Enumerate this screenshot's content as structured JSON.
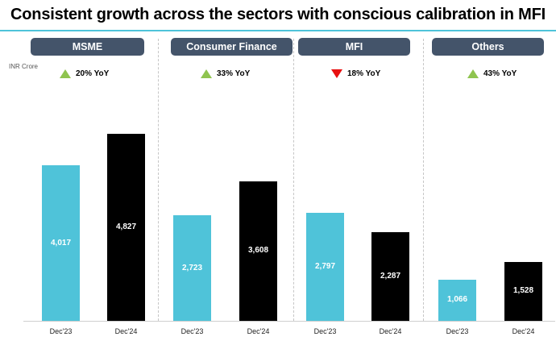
{
  "title": "Consistent growth across the sectors with conscious calibration in MFI",
  "colors": {
    "accent": "#4fc3d9",
    "dec23_bar": "#4fc3d9",
    "dec24_bar": "#000000",
    "pill_bg": "#44546a",
    "up": "#8fc44f",
    "down": "#e81010"
  },
  "chart_data": {
    "type": "bar",
    "unit": "INR Crore",
    "categories": [
      "Dec'23",
      "Dec'24"
    ],
    "groups": [
      {
        "name": "MSME",
        "yoy": "20% YoY",
        "trend": "up",
        "values": [
          4017,
          4827
        ],
        "labels": [
          "4,017",
          "4,827"
        ]
      },
      {
        "name": "Consumer Finance",
        "yoy": "33% YoY",
        "trend": "up",
        "values": [
          2723,
          3608
        ],
        "labels": [
          "2,723",
          "3,608"
        ]
      },
      {
        "name": "MFI",
        "yoy": "18% YoY",
        "trend": "down",
        "values": [
          2797,
          2287
        ],
        "labels": [
          "2,797",
          "2,287"
        ]
      },
      {
        "name": "Others",
        "yoy": "43% YoY",
        "trend": "up",
        "values": [
          1066,
          1528
        ],
        "labels": [
          "1,066",
          "1,528"
        ]
      }
    ],
    "ylim": [
      0,
      5500
    ]
  }
}
